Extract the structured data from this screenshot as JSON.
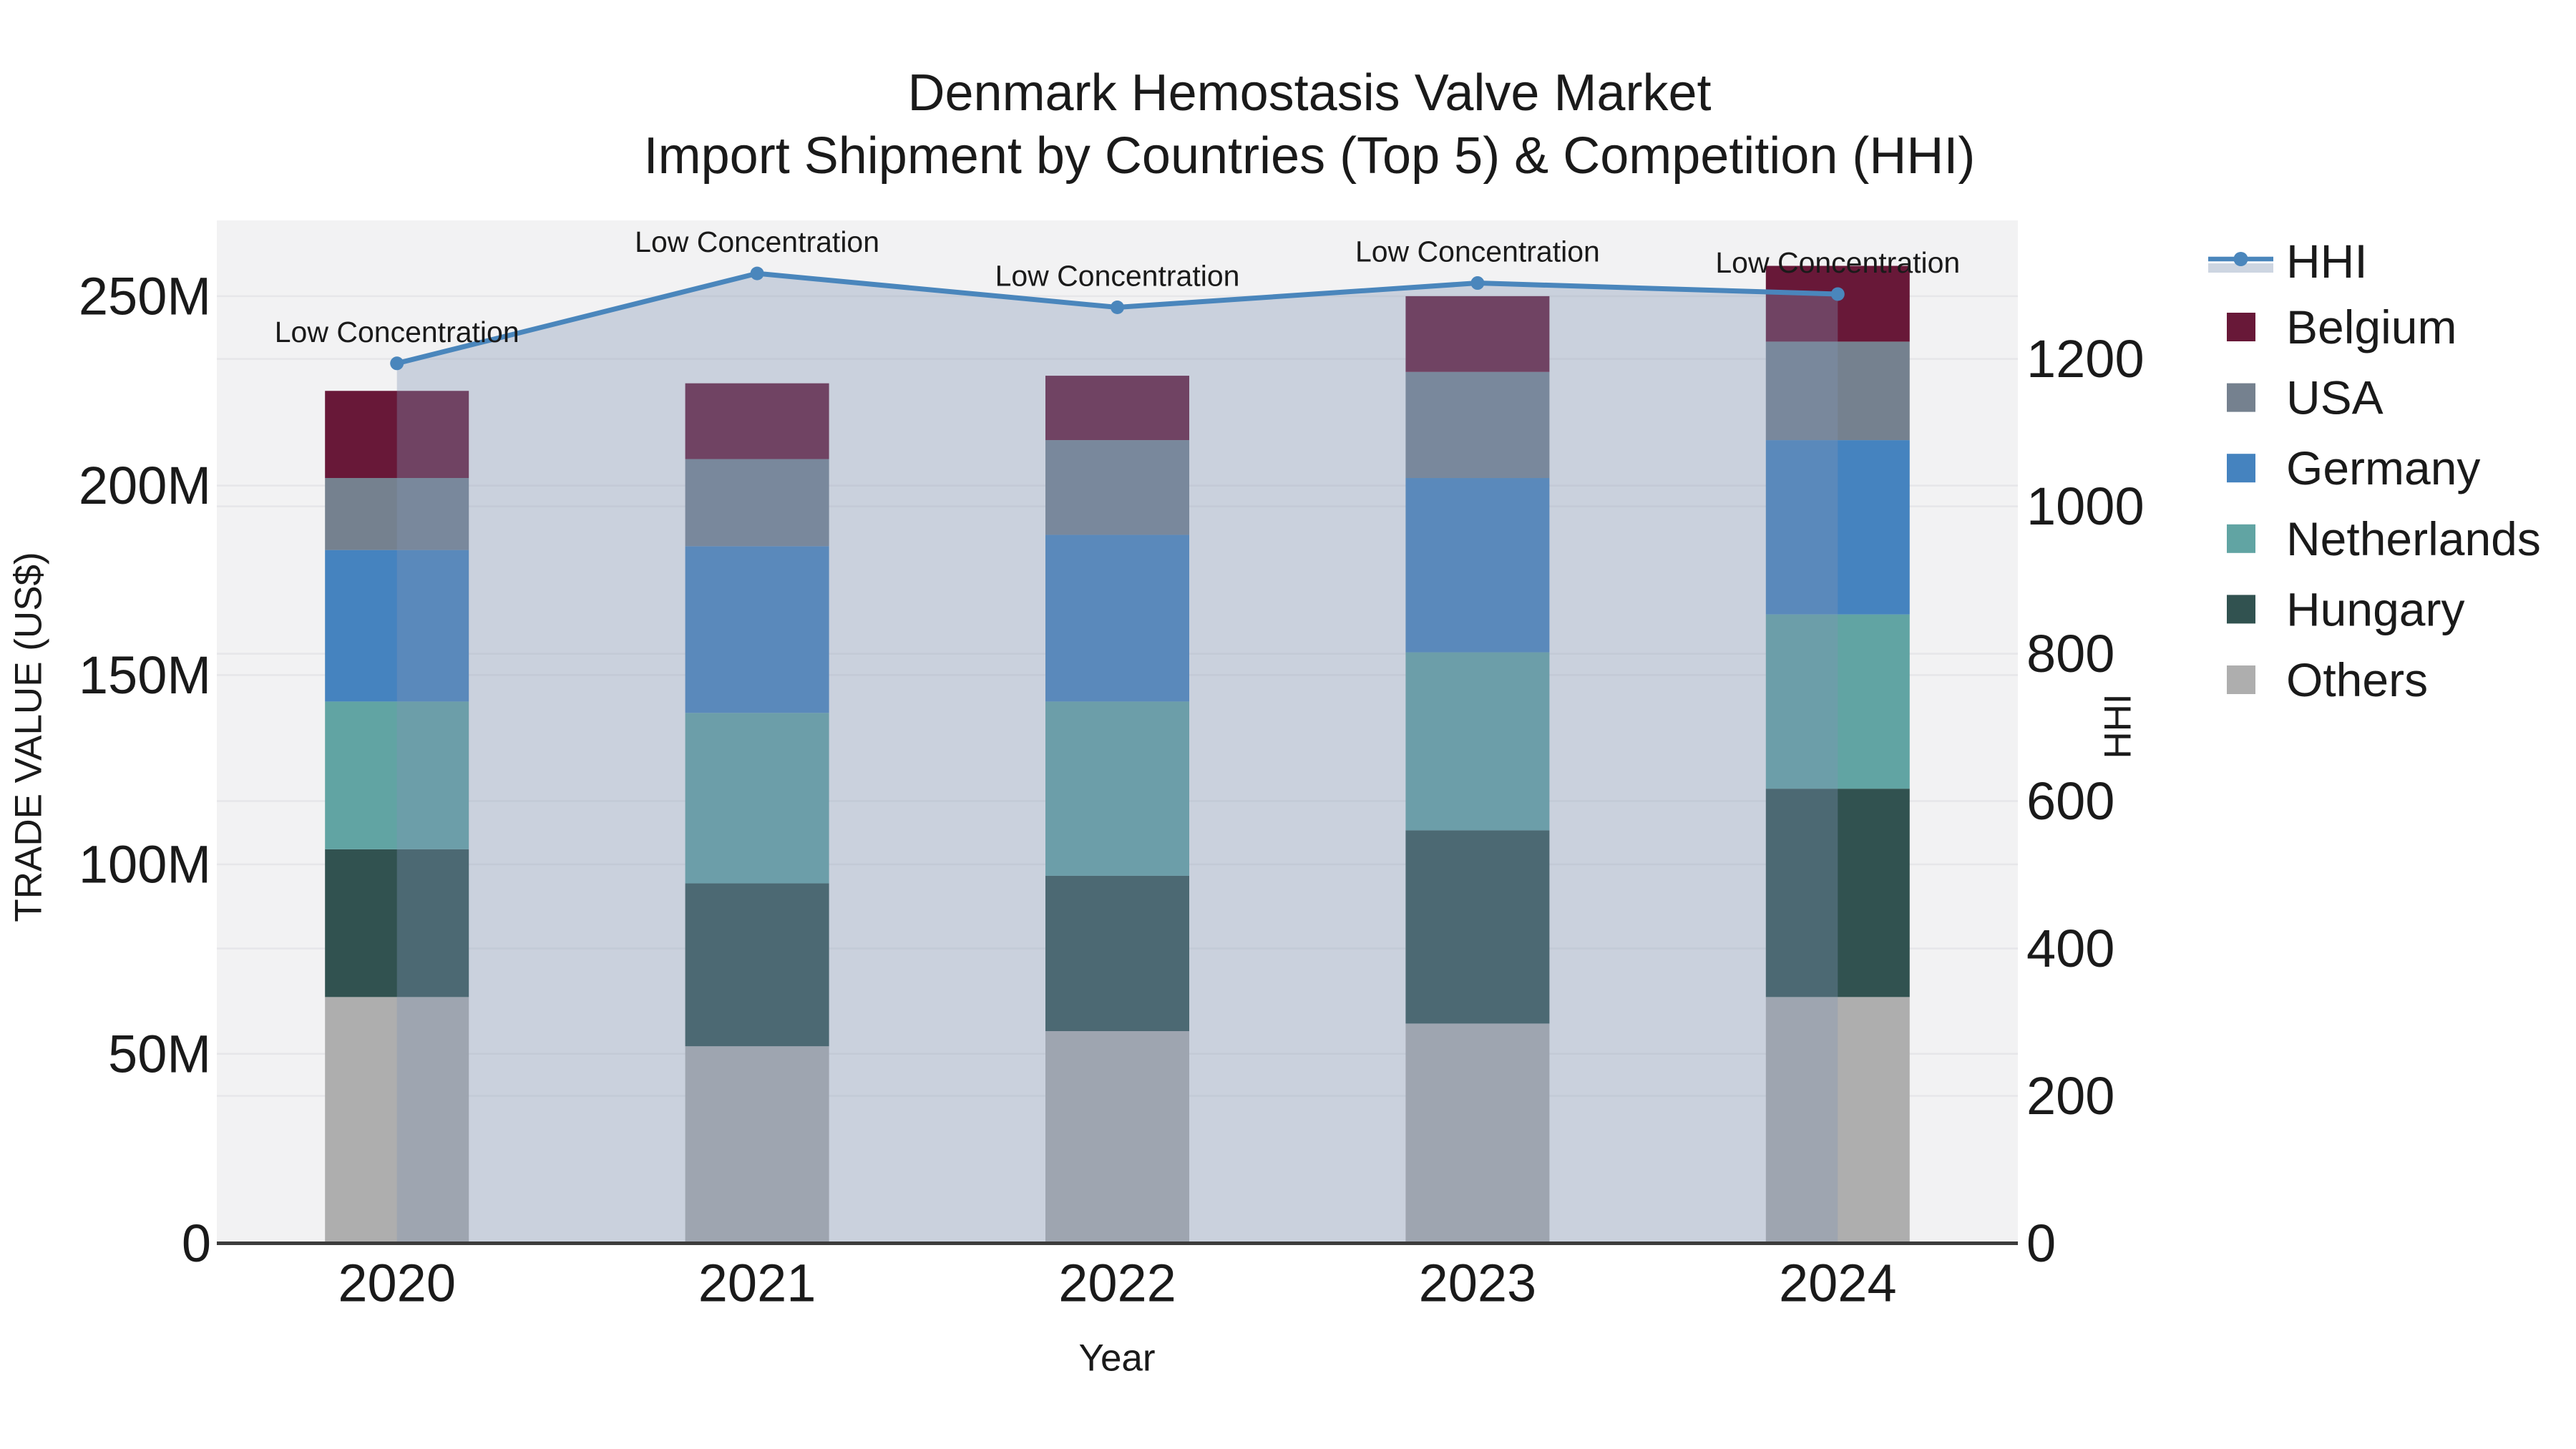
{
  "colors": {
    "page_bg": "#ffffff",
    "plot_bg": "#f2f2f3",
    "grid": "#e6e6e9",
    "axis_line": "#3c3c3c",
    "text": "#1a1a1a"
  },
  "chart_data": {
    "type": "bar",
    "stacked": true,
    "title_line1": "Denmark Hemostasis Valve Market",
    "title_line2": "Import Shipment by Countries (Top 5) & Competition (HHI)",
    "xlabel": "Year",
    "ylabel_left": "TRADE VALUE (US$)",
    "ylabel_right": "HHI",
    "categories": [
      "2020",
      "2021",
      "2022",
      "2023",
      "2024"
    ],
    "series": [
      {
        "name": "Others",
        "color": "#aeaeae",
        "values": [
          65,
          52,
          56,
          58,
          65
        ]
      },
      {
        "name": "Hungary",
        "color": "#315250",
        "values": [
          39,
          43,
          41,
          51,
          55
        ]
      },
      {
        "name": "Netherlands",
        "color": "#61a4a3",
        "values": [
          39,
          45,
          46,
          47,
          46
        ]
      },
      {
        "name": "Germany",
        "color": "#4583bf",
        "values": [
          40,
          44,
          44,
          46,
          46
        ]
      },
      {
        "name": "USA",
        "color": "#75818f",
        "values": [
          19,
          23,
          25,
          28,
          26
        ]
      },
      {
        "name": "Belgium",
        "color": "#681838",
        "values": [
          23,
          20,
          17,
          20,
          20
        ]
      }
    ],
    "values_unit": "Million US$",
    "line_series": {
      "name": "HHI",
      "axis": "right",
      "color": "#4a86bc",
      "fill_color": "#8296b4",
      "fill_opacity": 0.35,
      "values": [
        1194,
        1316,
        1270,
        1303,
        1288
      ]
    },
    "annotations": [
      {
        "category": "2020",
        "text": "Low Concentration"
      },
      {
        "category": "2021",
        "text": "Low Concentration"
      },
      {
        "category": "2022",
        "text": "Low Concentration"
      },
      {
        "category": "2023",
        "text": "Low Concentration"
      },
      {
        "category": "2024",
        "text": "Low Concentration"
      }
    ],
    "y_left_ticks": {
      "values": [
        0,
        50,
        100,
        150,
        200,
        250
      ],
      "labels": [
        "0",
        "50M",
        "100M",
        "150M",
        "200M",
        "250M"
      ]
    },
    "y_right_ticks": {
      "values": [
        0,
        200,
        400,
        600,
        800,
        1000,
        1200
      ],
      "labels": [
        "0",
        "200",
        "400",
        "600",
        "800",
        "1000",
        "1200"
      ]
    },
    "ylim_left": [
      0,
      270
    ],
    "ylim_right": [
      0,
      1388
    ],
    "grid": true,
    "legend": {
      "position": "right",
      "entries": [
        {
          "label": "HHI",
          "type": "line"
        },
        {
          "label": "Belgium",
          "type": "patch"
        },
        {
          "label": "USA",
          "type": "patch"
        },
        {
          "label": "Germany",
          "type": "patch"
        },
        {
          "label": "Netherlands",
          "type": "patch"
        },
        {
          "label": "Hungary",
          "type": "patch"
        },
        {
          "label": "Others",
          "type": "patch"
        }
      ]
    }
  }
}
